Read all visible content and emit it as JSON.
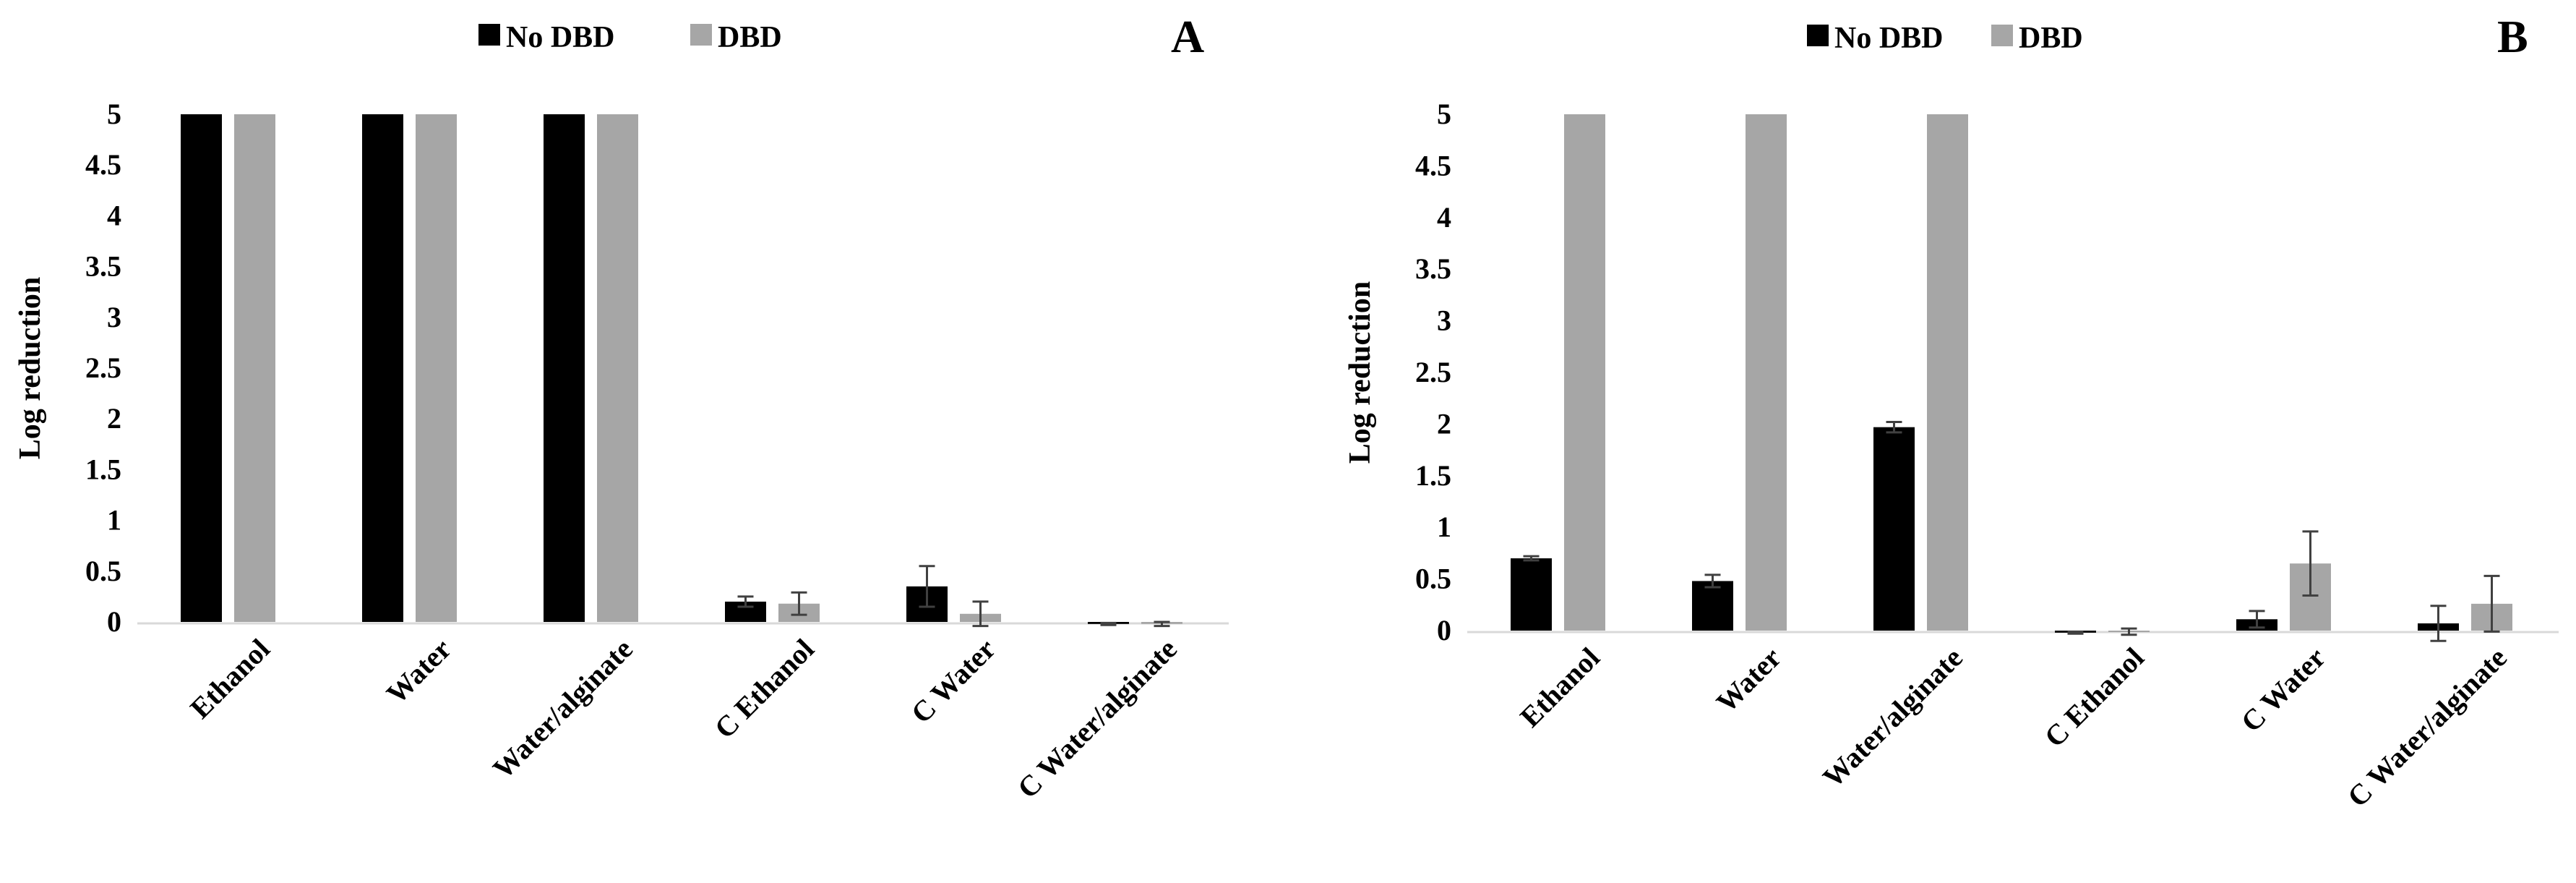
{
  "colors": {
    "no_dbd": "#000000",
    "dbd": "#a6a6a6",
    "axis": "#d9d9d9",
    "error_bar": "#404040"
  },
  "chart_data": [
    {
      "type": "bar",
      "panel_label": "A",
      "ylabel": "Log reduction",
      "ylim": [
        0,
        5
      ],
      "y_ticks": [
        "0",
        "0.5",
        "1",
        "1.5",
        "2",
        "2.5",
        "3",
        "3.5",
        "4",
        "4.5",
        "5"
      ],
      "grid": false,
      "legend_position": "top",
      "categories": [
        "Ethanol",
        "Water",
        "Water/alginate",
        "C Ethanol",
        "C Water",
        "C Water/alginate"
      ],
      "series": [
        {
          "name": "No DBD",
          "values": [
            5,
            5,
            5,
            0.2,
            0.35,
            -0.02
          ],
          "errors": [
            null,
            null,
            null,
            0.05,
            0.2,
            0.01
          ]
        },
        {
          "name": "DBD",
          "values": [
            5,
            5,
            5,
            0.18,
            0.08,
            -0.02
          ],
          "errors": [
            null,
            null,
            null,
            0.11,
            0.12,
            0.02
          ]
        }
      ]
    },
    {
      "type": "bar",
      "panel_label": "B",
      "ylabel": "Log reduction",
      "ylim": [
        0,
        5
      ],
      "y_ticks": [
        "0",
        "0.5",
        "1",
        "1.5",
        "2",
        "2.5",
        "3",
        "3.5",
        "4",
        "4.5",
        "5"
      ],
      "grid": false,
      "legend_position": "top",
      "categories": [
        "Ethanol",
        "Water",
        "Water/alginate",
        "C Ethanol",
        "C Water",
        "C Water/alginate"
      ],
      "series": [
        {
          "name": "No DBD",
          "values": [
            0.7,
            0.48,
            1.97,
            -0.02,
            0.11,
            0.07
          ],
          "errors": [
            0.02,
            0.06,
            0.05,
            0.01,
            0.08,
            0.17
          ]
        },
        {
          "name": "DBD",
          "values": [
            5,
            5,
            5,
            -0.01,
            0.65,
            0.26
          ],
          "errors": [
            null,
            null,
            null,
            0.03,
            0.31,
            0.27
          ]
        }
      ]
    }
  ]
}
